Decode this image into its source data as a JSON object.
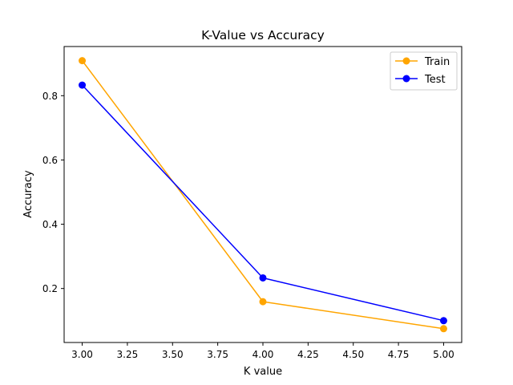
{
  "chart_data": {
    "type": "line",
    "title": "K-Value vs Accuracy",
    "xlabel": "K value",
    "ylabel": "Accuracy",
    "x": [
      3,
      4,
      5
    ],
    "xlim": [
      2.9,
      5.1
    ],
    "ylim": [
      0.032,
      0.953
    ],
    "x_ticks": [
      3.0,
      3.25,
      3.5,
      3.75,
      4.0,
      4.25,
      4.5,
      4.75,
      5.0
    ],
    "x_tick_labels": [
      "3.00",
      "3.25",
      "3.50",
      "3.75",
      "4.00",
      "4.25",
      "4.50",
      "4.75",
      "5.00"
    ],
    "y_ticks": [
      0.2,
      0.4,
      0.6,
      0.8
    ],
    "y_tick_labels": [
      "0.2",
      "0.4",
      "0.6",
      "0.8"
    ],
    "grid": false,
    "legend_position": "top-right",
    "series": [
      {
        "name": "Train",
        "color": "#ffa500",
        "marker": "circle",
        "values": [
          0.909,
          0.159,
          0.075
        ]
      },
      {
        "name": "Test",
        "color": "#0000ff",
        "marker": "circle",
        "values": [
          0.833,
          0.233,
          0.1
        ]
      }
    ]
  }
}
